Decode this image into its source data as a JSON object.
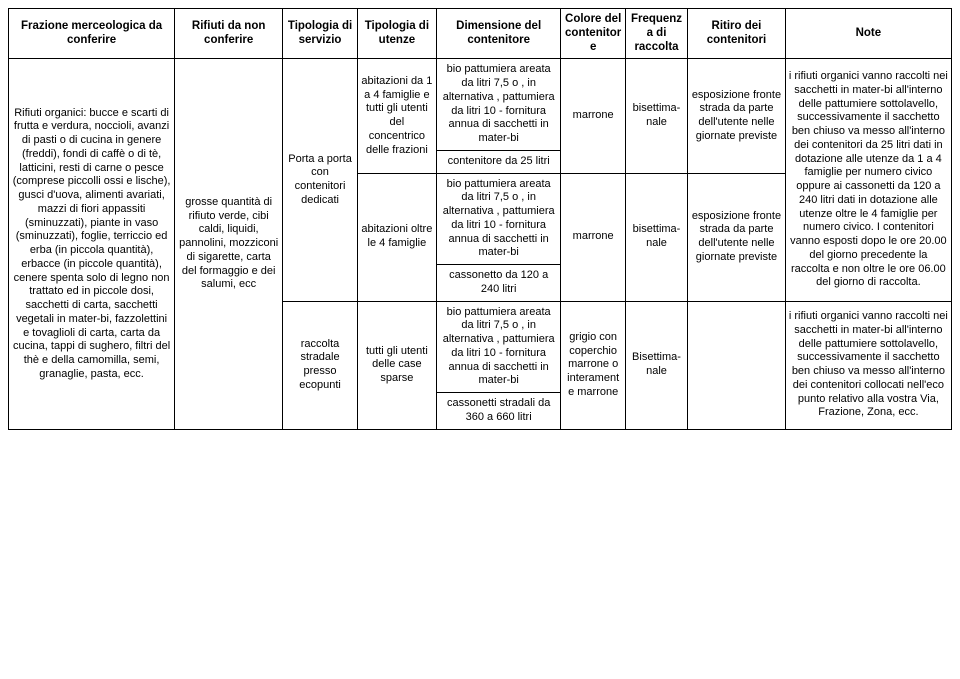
{
  "headers": {
    "frazione": "Frazione merceologica da conferire",
    "rifiuti": "Rifiuti da non conferire",
    "servizio": "Tipologia di servizio",
    "utenze": "Tipologia di utenze",
    "dimensione": "Dimensione del contenitore",
    "colore": "Colore del contenitore",
    "frequenza": "Frequenza di raccolta",
    "ritiro": "Ritiro dei contenitori",
    "note": "Note"
  },
  "frazione": "Rifiuti organici: bucce e scarti di frutta e verdura, noccioli, avanzi di pasti o di cucina in genere (freddi), fondi di caffè o di tè, latticini, resti di carne o pesce (comprese piccolli ossi e lische), gusci d'uova, alimenti avariati, mazzi di fiori appassiti (sminuzzati), piante in vaso (sminuzzati), foglie, terriccio ed erba (in piccola quantità), erbacce (in piccole quantità), cenere spenta solo di legno non trattato ed in piccole dosi, sacchetti di carta, sacchetti vegetali in mater-bi, fazzolettini e tovaglioli di carta, carta da cucina, tappi di sughero, filtri del thè e della camomilla, semi, granaglie, pasta, ecc.",
  "rifiuti_no": "grosse quantità di rifiuto verde, cibi caldi, liquidi, pannolini, mozziconi di sigarette, carta del formaggio e dei salumi, ecc",
  "servizio": {
    "r1": "Porta a porta con contenitori dedicati",
    "r2": "raccolta stradale presso ecopunti"
  },
  "utenze": {
    "u1": "abitazioni da 1 a 4 famiglie e tutti gli utenti del concentrico delle frazioni",
    "u2": "abitazioni oltre le 4 famiglie",
    "u3": "tutti gli utenti delle case sparse"
  },
  "dim": {
    "d1": "bio pattumiera areata da litri 7,5 o , in alternativa , pattumiera da litri 10 - fornitura annua di sacchetti in mater-bi",
    "d2": "contenitore da 25 litri",
    "d3": "bio pattumiera areata da litri 7,5 o , in alternativa , pattumiera da litri 10 - fornitura annua di sacchetti in mater-bi",
    "d4": "cassonetto da 120 a 240 litri",
    "d5": "bio pattumiera areata da litri 7,5 o , in alternativa , pattumiera da litri 10 - fornitura annua di sacchetti in mater-bi",
    "d6": "cassonetti stradali da 360 a 660 litri"
  },
  "colore": {
    "c1": "marrone",
    "c2": "marrone",
    "c3": "grigio con coperchio marrone o interamente marrone"
  },
  "freq": {
    "f1": "bisettima-nale",
    "f2": "bisettima-nale",
    "f3": "Bisettima-nale"
  },
  "ritiro": {
    "r1": "esposizione fronte strada da parte dell'utente nelle giornate previste",
    "r2": "esposizione fronte strada da parte dell'utente nelle giornate previste",
    "r3": ""
  },
  "note": {
    "n1": "i rifiuti organici vanno raccolti nei sacchetti in mater-bi all'interno delle pattumiere sottolavello, successivamente il sacchetto ben chiuso va messo all'interno dei contenitori  da 25 litri dati in dotazione alle utenze da 1 a 4 famiglie per numero civico oppure ai cassonetti da 120 a 240 litri dati in dotazione alle utenze oltre le 4 famiglie per numero civico. I contenitori vanno esposti dopo le ore 20.00 del giorno precedente la raccolta e non oltre le ore 06.00 del giorno di raccolta.",
    "n2": "i rifiuti organici vanno raccolti nei sacchetti in mater-bi all'interno delle pattumiere sottolavello, successivamente il sacchetto ben chiuso va messo all'interno dei contenitori  collocati nell'eco punto relativo alla vostra Via, Frazione, Zona, ecc."
  }
}
